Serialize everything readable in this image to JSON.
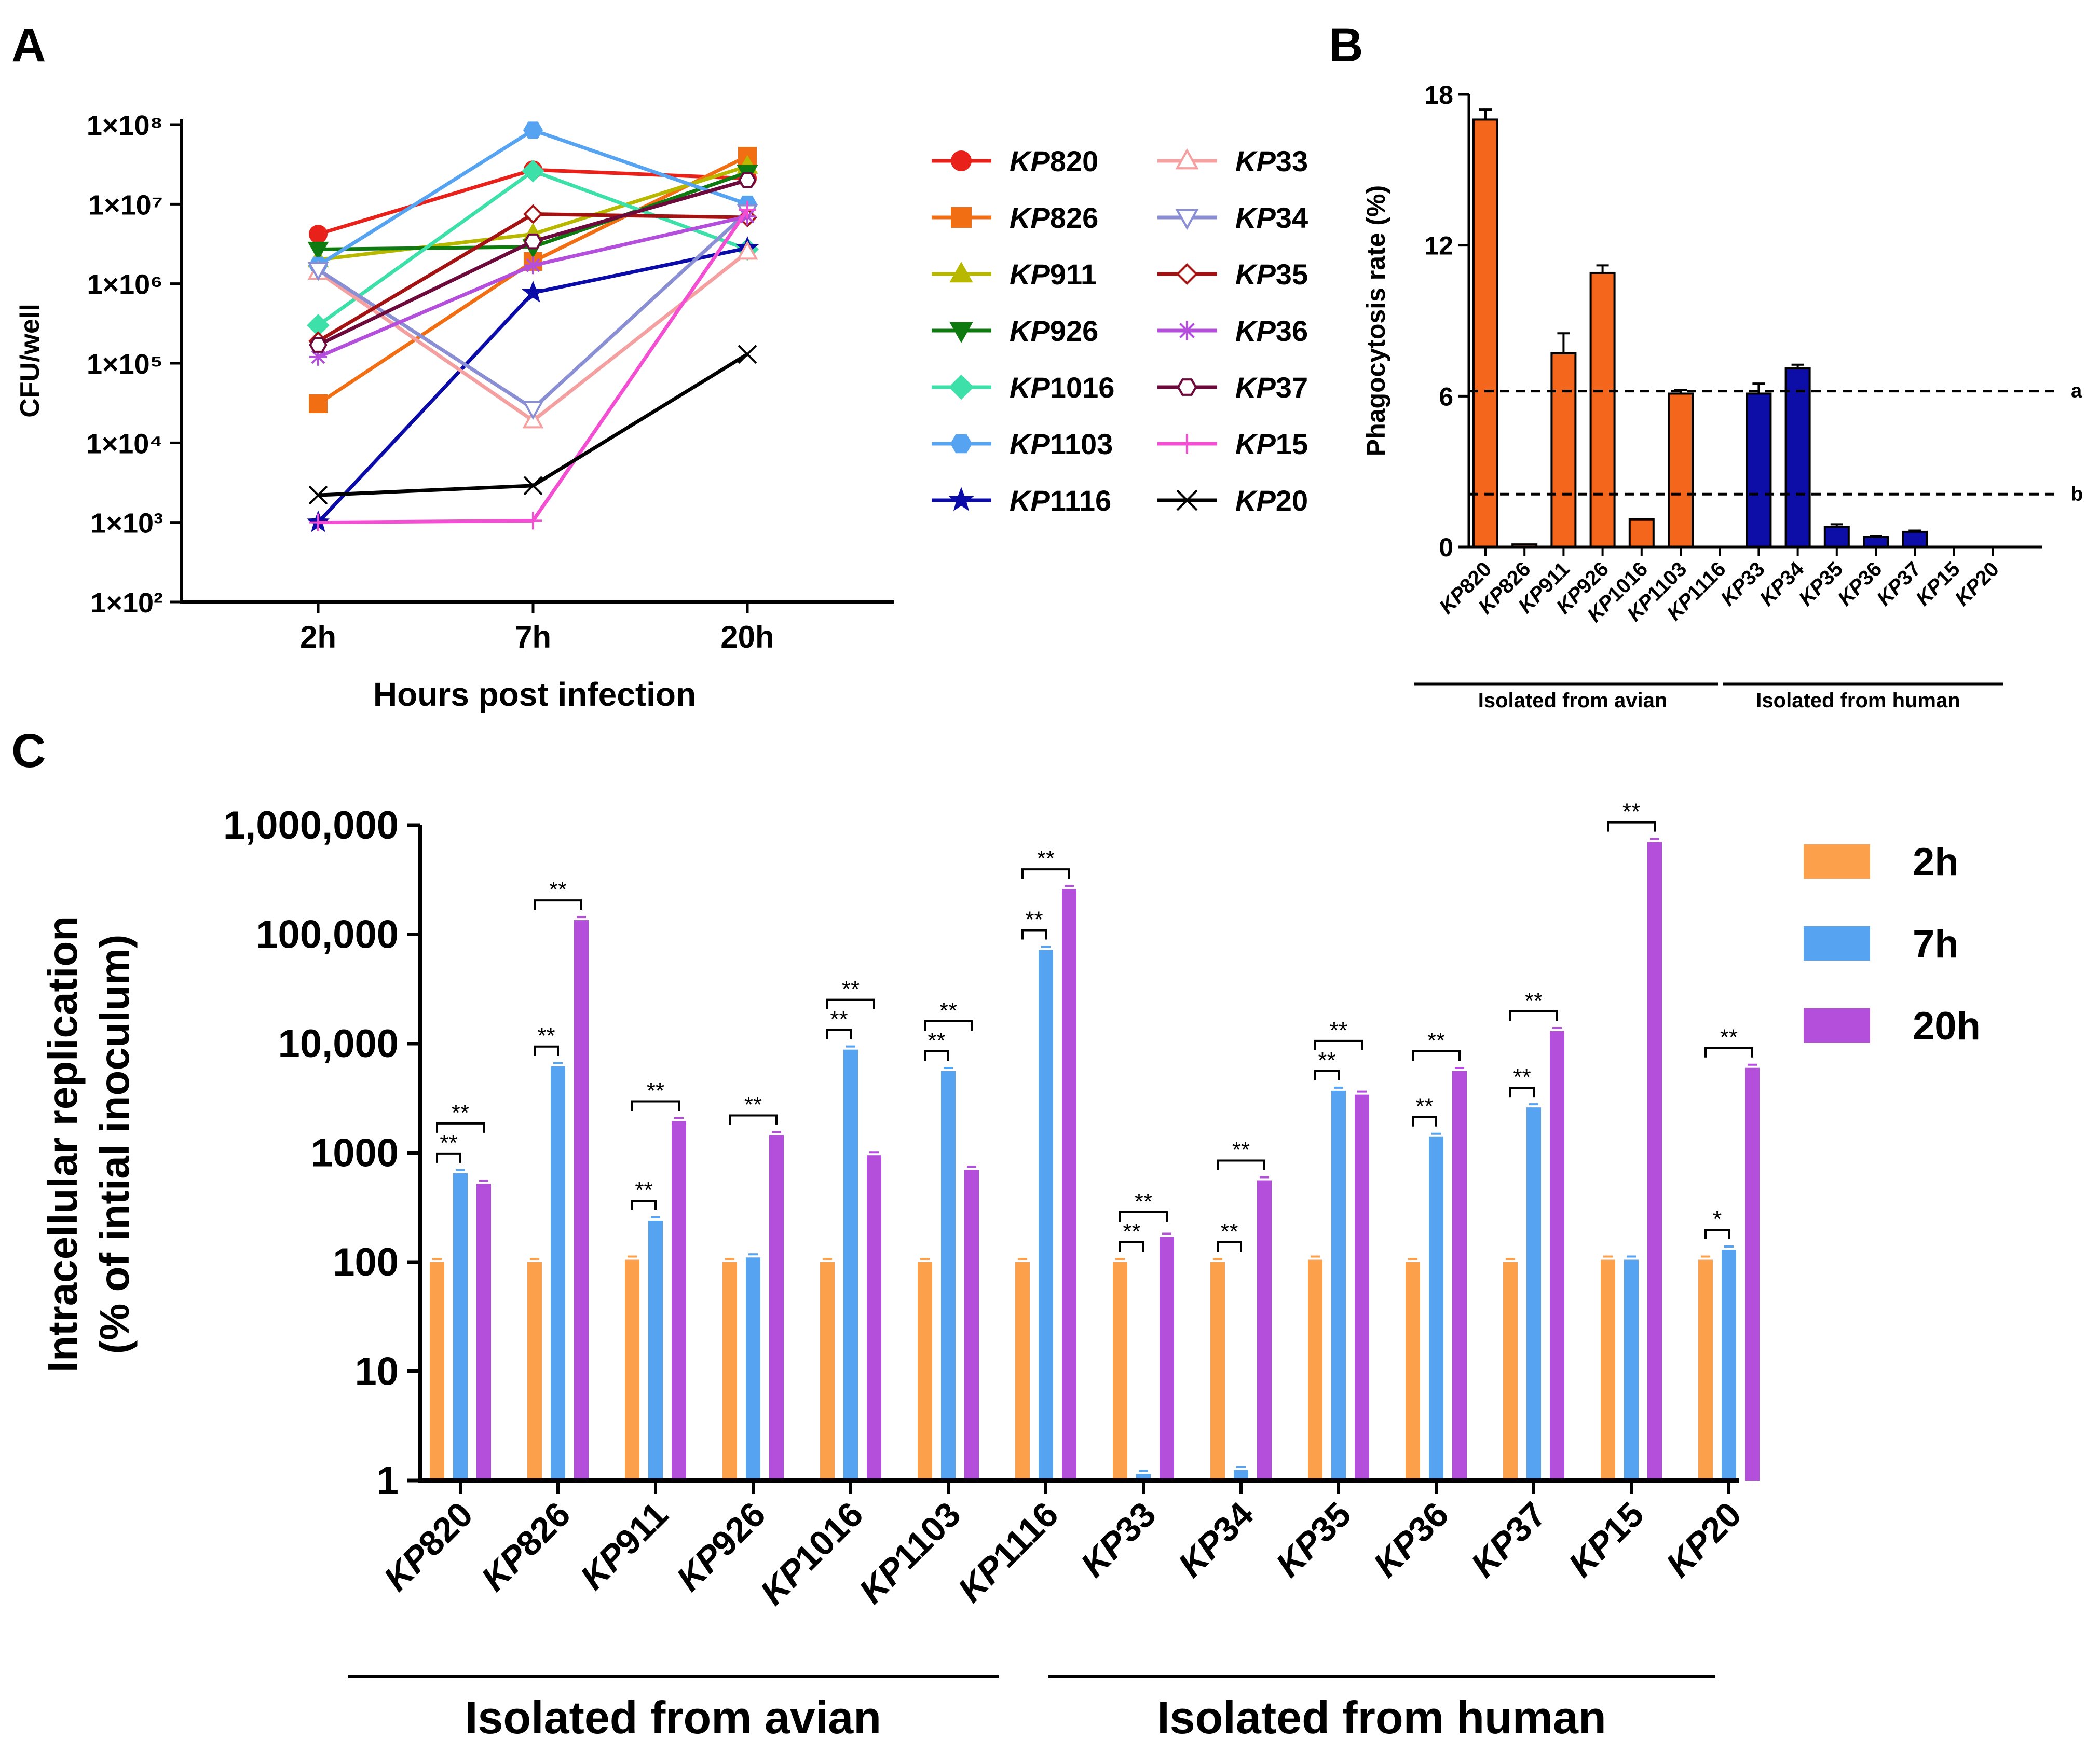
{
  "panels": {
    "a": "A",
    "b": "B",
    "c": "C"
  },
  "chart_data": [
    {
      "id": "A",
      "type": "line",
      "yscale": "log",
      "xlabel": "Hours post infection",
      "ylabel": "CFU/well",
      "categories": [
        "2h",
        "7h",
        "20h"
      ],
      "yticks": [
        "1×10²",
        "1×10³",
        "1×10⁴",
        "1×10⁵",
        "1×10⁶",
        "1×10⁷",
        "1×10⁸"
      ],
      "ylim": [
        100,
        100000000
      ],
      "legend_position": "right",
      "series": [
        {
          "prefix": "KP",
          "suffix": "820",
          "color": "#e8211a",
          "marker": "circle",
          "values": [
            4200000,
            27000000,
            21000000
          ]
        },
        {
          "prefix": "KP",
          "suffix": "826",
          "color": "#f26e12",
          "marker": "square",
          "values": [
            31000,
            1900000,
            40000000
          ]
        },
        {
          "prefix": "KP",
          "suffix": "911",
          "color": "#b9b800",
          "marker": "triangle-up",
          "values": [
            2000000,
            4200000,
            30000000
          ]
        },
        {
          "prefix": "KP",
          "suffix": "926",
          "color": "#0f7a0f",
          "marker": "triangle-down",
          "values": [
            2700000,
            2900000,
            25000000
          ]
        },
        {
          "prefix": "KP",
          "suffix": "1016",
          "color": "#3de0a8",
          "marker": "diamond",
          "values": [
            300000,
            26000000,
            2700000
          ]
        },
        {
          "prefix": "KP",
          "suffix": "1103",
          "color": "#56a3f2",
          "marker": "hexagon",
          "values": [
            1700000,
            85000000,
            10000000
          ]
        },
        {
          "prefix": "KP",
          "suffix": "1116",
          "color": "#0b0ba8",
          "marker": "star",
          "values": [
            1000,
            770000,
            2800000
          ]
        },
        {
          "prefix": "KP",
          "suffix": "33",
          "color": "#f4a0a0",
          "marker": "triangle-up-open",
          "values": [
            1400000,
            19000,
            2500000
          ]
        },
        {
          "prefix": "KP",
          "suffix": "34",
          "color": "#8a8fd4",
          "marker": "triangle-down-open",
          "values": [
            1500000,
            27000,
            8000000
          ]
        },
        {
          "prefix": "KP",
          "suffix": "35",
          "color": "#a31313",
          "marker": "diamond-open",
          "values": [
            190000,
            7500000,
            6800000
          ]
        },
        {
          "prefix": "KP",
          "suffix": "36",
          "color": "#b44fdc",
          "marker": "asterisk",
          "values": [
            120000,
            1700000,
            7000000
          ]
        },
        {
          "prefix": "KP",
          "suffix": "37",
          "color": "#6b0a3b",
          "marker": "hexagon-open",
          "values": [
            170000,
            3400000,
            20000000
          ]
        },
        {
          "prefix": "KP",
          "suffix": "15",
          "color": "#f24fd2",
          "marker": "plus",
          "values": [
            1000,
            1050,
            8500000
          ]
        },
        {
          "prefix": "KP",
          "suffix": "20",
          "color": "#000000",
          "marker": "cross",
          "values": [
            2200,
            2900,
            130000
          ]
        }
      ]
    },
    {
      "id": "B",
      "type": "bar",
      "ylabel": "Phagocytosis rate (%)",
      "yticks": [
        0,
        6,
        12,
        18
      ],
      "ylim": [
        0,
        18
      ],
      "strains": [
        "820",
        "826",
        "911",
        "926",
        "1016",
        "1103",
        "1116",
        "33",
        "34",
        "35",
        "36",
        "37",
        "15",
        "20"
      ],
      "prefix": "KP",
      "values": [
        17.0,
        0.1,
        7.7,
        10.9,
        1.1,
        6.1,
        0.0,
        6.1,
        7.1,
        0.8,
        0.4,
        0.6,
        0.0,
        0.0
      ],
      "errors": [
        0.4,
        0.0,
        0.8,
        0.3,
        0.0,
        0.15,
        0.0,
        0.4,
        0.15,
        0.1,
        0.05,
        0.05,
        0.0,
        0.0
      ],
      "colors": {
        "avian": "#f4661b",
        "human": "#0d0da8"
      },
      "group_count_avian": 7,
      "reference_lines": [
        {
          "label": "a",
          "value": 6.2
        },
        {
          "label": "b",
          "value": 2.1
        }
      ],
      "groups": {
        "avian": "Isolated from avian",
        "human": "Isolated from human"
      }
    },
    {
      "id": "C",
      "type": "bar",
      "yscale": "log",
      "ylabel_line1": "Intracellular replication",
      "ylabel_line2": "(% of intial inoculum)",
      "yticks": [
        "1",
        "10",
        "100",
        "1000",
        "10,000",
        "100,000",
        "1,000,000"
      ],
      "ylim": [
        1,
        1000000
      ],
      "strains": [
        "820",
        "826",
        "911",
        "926",
        "1016",
        "1103",
        "1116",
        "33",
        "34",
        "35",
        "36",
        "37",
        "15",
        "20"
      ],
      "prefix": "KP",
      "legend_position": "top-right",
      "series": [
        {
          "name": "2h",
          "color": "#fca04c",
          "values": [
            100,
            100,
            105,
            100,
            100,
            100,
            100,
            100,
            100,
            105,
            100,
            100,
            105,
            105
          ]
        },
        {
          "name": "7h",
          "color": "#56a3f2",
          "values": [
            650,
            6200,
            240,
            110,
            8800,
            5600,
            72000,
            1.15,
            1.25,
            3700,
            1400,
            2600,
            105,
            130
          ]
        },
        {
          "name": "20h",
          "color": "#b44fdc",
          "values": [
            520,
            135000,
            1950,
            1450,
            950,
            700,
            260000,
            170,
            560,
            3400,
            5600,
            13000,
            700000,
            6000
          ]
        }
      ],
      "significance": [
        {
          "strain": "820",
          "stars": [
            "**",
            "**"
          ]
        },
        {
          "strain": "826",
          "stars": [
            "**",
            "**"
          ]
        },
        {
          "strain": "911",
          "stars": [
            "**",
            "**"
          ]
        },
        {
          "strain": "926",
          "stars": [
            null,
            "**"
          ]
        },
        {
          "strain": "1016",
          "stars": [
            "**",
            "**"
          ]
        },
        {
          "strain": "1103",
          "stars": [
            "**",
            "**"
          ]
        },
        {
          "strain": "1116",
          "stars": [
            "**",
            "**"
          ]
        },
        {
          "strain": "33",
          "stars": [
            "**",
            "**"
          ]
        },
        {
          "strain": "34",
          "stars": [
            "**",
            "**"
          ]
        },
        {
          "strain": "35",
          "stars": [
            "**",
            "**"
          ]
        },
        {
          "strain": "36",
          "stars": [
            "**",
            "**"
          ]
        },
        {
          "strain": "37",
          "stars": [
            "**",
            "**"
          ]
        },
        {
          "strain": "15",
          "stars": [
            null,
            "**"
          ]
        },
        {
          "strain": "20",
          "stars": [
            "*",
            "**"
          ]
        }
      ],
      "group_count_avian": 7,
      "groups": {
        "avian": "Isolated from avian",
        "human": "Isolated from human"
      }
    }
  ]
}
